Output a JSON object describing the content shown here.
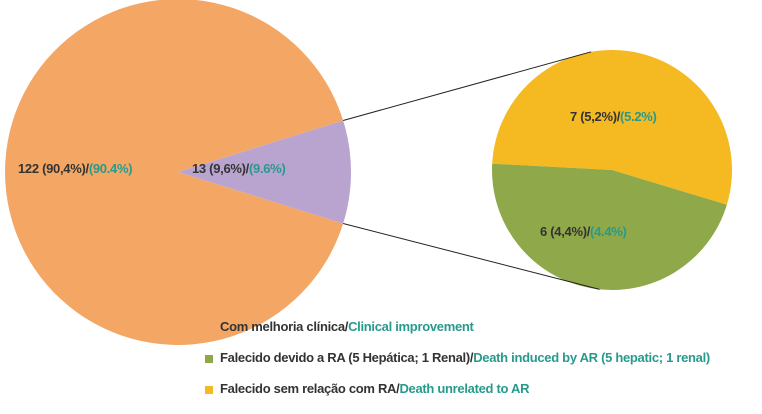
{
  "chart_data": [
    {
      "type": "pie",
      "values": [
        122,
        13
      ],
      "value_labels": [
        "122 (90,4%)/",
        "13 (9,6%)/"
      ],
      "value_labels_en": [
        "(90.4%)",
        "(9.6%)"
      ],
      "colors": [
        "#f4a765",
        "#b9a3cf"
      ]
    },
    {
      "type": "pie",
      "values": [
        7,
        6
      ],
      "value_labels": [
        "7 (5,2%)/",
        "6 (4,4%)/"
      ],
      "value_labels_en": [
        "(5.2%)",
        "(4.4%)"
      ],
      "colors": [
        "#f5b921",
        "#8fa84a"
      ]
    }
  ],
  "legend": [
    {
      "text": "Com melhoria clínica/",
      "text_en": "Clinical improvement",
      "color": "#f4a765"
    },
    {
      "text": "Falecido devido a RA (5 Hepática; 1 Renal)/",
      "text_en": "Death induced by AR (5 hepatic; 1 renal)",
      "color": "#8fa84a"
    },
    {
      "text": "Falecido sem relação com RA/",
      "text_en": "Death unrelated to AR",
      "color": "#f5b921"
    }
  ]
}
